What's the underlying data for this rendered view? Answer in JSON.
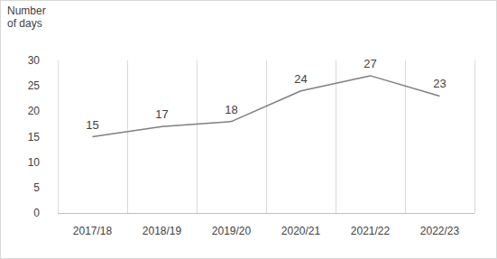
{
  "chart_data": {
    "type": "line",
    "y_label": "Number of days",
    "categories": [
      "2017/18",
      "2018/19",
      "2019/20",
      "2020/21",
      "2021/22",
      "2022/23"
    ],
    "values": [
      15,
      17,
      18,
      24,
      27,
      23
    ],
    "color": "#7f7f7f",
    "ylim": [
      0,
      30
    ],
    "yticks": [
      0,
      5,
      10,
      15,
      20,
      25,
      30
    ],
    "grid": true,
    "data_labels": true
  }
}
